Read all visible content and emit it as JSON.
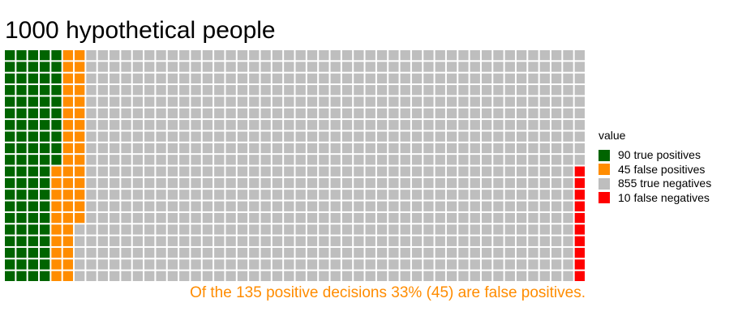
{
  "chart_data": {
    "type": "waffle",
    "title": "1000 hypothetical people",
    "caption": "Of the 135 positive decisions 33% (45) are false positives.",
    "caption_color": "#ff8c00",
    "grid": {
      "rows": 20,
      "columns": 50,
      "total": 1000
    },
    "legend": {
      "title": "value",
      "position": "right"
    },
    "series": [
      {
        "label": "90 true positives",
        "count": 90,
        "color": "#006400"
      },
      {
        "label": "45 false positives",
        "count": 45,
        "color": "#ff8c00"
      },
      {
        "label": "855 true negatives",
        "count": 855,
        "color": "#bebebe"
      },
      {
        "label": "10 false negatives",
        "count": 10,
        "color": "#ff0000"
      }
    ]
  }
}
